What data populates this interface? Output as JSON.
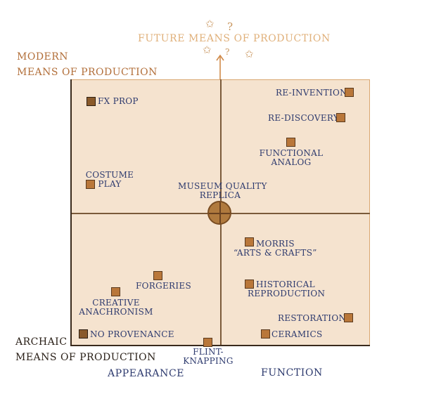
{
  "future_label": "FUTURE MEANS OF PRODUCTION",
  "modern_label_line1": "MODERN",
  "modern_label_line2": "MEANS OF PRODUCTION",
  "archaic_label_line1": "ARCHAIC",
  "archaic_label_line2": "MEANS OF PRODUCTION",
  "x_axis": {
    "appearance": "APPEARANCE",
    "function": "FUNCTION"
  },
  "center": {
    "line1": "MUSEUM QUALITY",
    "line2": "REPLICA"
  },
  "items": {
    "fx_prop": "FX PROP",
    "costume_play_1": "COSTUME",
    "costume_play_2": "PLAY",
    "re_invention": "RE-INVENTION",
    "re_discovery": "RE-DISCOVERY",
    "functional_analog_1": "FUNCTIONAL",
    "functional_analog_2": "ANALOG",
    "morris_1": "MORRIS",
    "morris_2": "“ARTS & CRAFTS”",
    "forgeries": "FORGERIES",
    "creative_1": "CREATIVE",
    "creative_2": "ANACHRONISM",
    "historical_1": "HISTORICAL",
    "historical_2": "REPRODUCTION",
    "restoration": "RESTORATION",
    "no_provenance": "NO PROVENANCE",
    "ceramics": "CERAMICS",
    "flint_1": "FLINT-",
    "flint_2": "KNAPPING"
  },
  "glyphs": {
    "star": "✩",
    "question": "?"
  },
  "colors": {
    "quadrant_fill": "#f5e3cf",
    "marker": "#b9773a",
    "label": "#2d3a6e",
    "modern": "#b26f3a",
    "future": "#e0b07a"
  }
}
